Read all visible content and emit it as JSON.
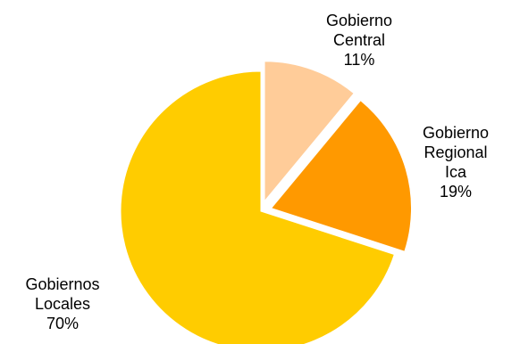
{
  "chart_data": {
    "type": "pie",
    "title": "",
    "legend": "none",
    "slices": [
      {
        "label_lines": [
          "Gobierno",
          "Central"
        ],
        "percent_text": "11%",
        "value": 11,
        "color": "#FFCC99",
        "exploded": true
      },
      {
        "label_lines": [
          "Gobierno",
          "Regional",
          "Ica"
        ],
        "percent_text": "19%",
        "value": 19,
        "color": "#FF9900",
        "exploded": true
      },
      {
        "label_lines": [
          "Gobiernos",
          "Locales"
        ],
        "percent_text": "70%",
        "value": 70,
        "color": "#FFCC00",
        "exploded": false
      }
    ]
  }
}
